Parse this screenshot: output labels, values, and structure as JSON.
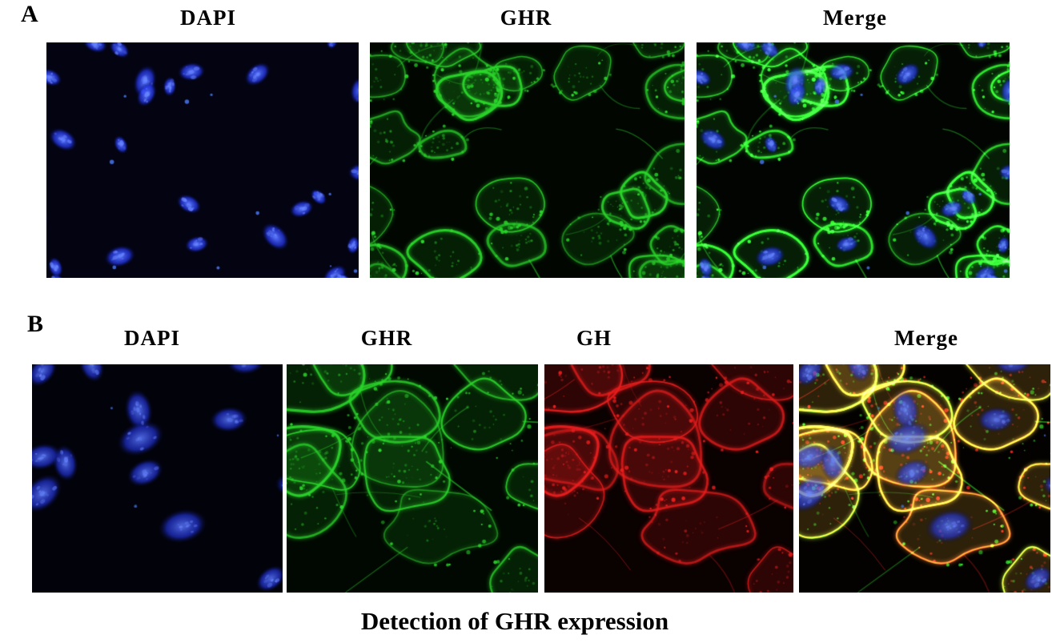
{
  "figure": {
    "caption": "Detection of GHR expression",
    "panel_a": {
      "label": "A",
      "columns": [
        {
          "title": "DAPI",
          "channel": "dapi",
          "description": "blue nuclear staining"
        },
        {
          "title": "GHR",
          "channel": "ghr",
          "description": "green membrane/cytoplasm staining"
        },
        {
          "title": "Merge",
          "channel": "merge",
          "description": "overlay of DAPI and GHR"
        }
      ]
    },
    "panel_b": {
      "label": "B",
      "columns": [
        {
          "title": "DAPI",
          "channel": "dapi",
          "description": "blue nuclear staining"
        },
        {
          "title": "GHR",
          "channel": "ghr",
          "description": "green membrane/cytoplasm staining"
        },
        {
          "title": "GH",
          "channel": "gh",
          "description": "red membrane/cytoplasm staining"
        },
        {
          "title": "Merge",
          "channel": "merge",
          "description": "overlay of DAPI, GHR and GH with yellow colocalization"
        }
      ]
    },
    "channel_colors": {
      "dapi": "#2336e8",
      "ghr": "#2bd62b",
      "gh": "#e81d1d",
      "colocalization": "#d8d422",
      "panel_background": "#000000",
      "page_background": "#ffffff"
    }
  }
}
